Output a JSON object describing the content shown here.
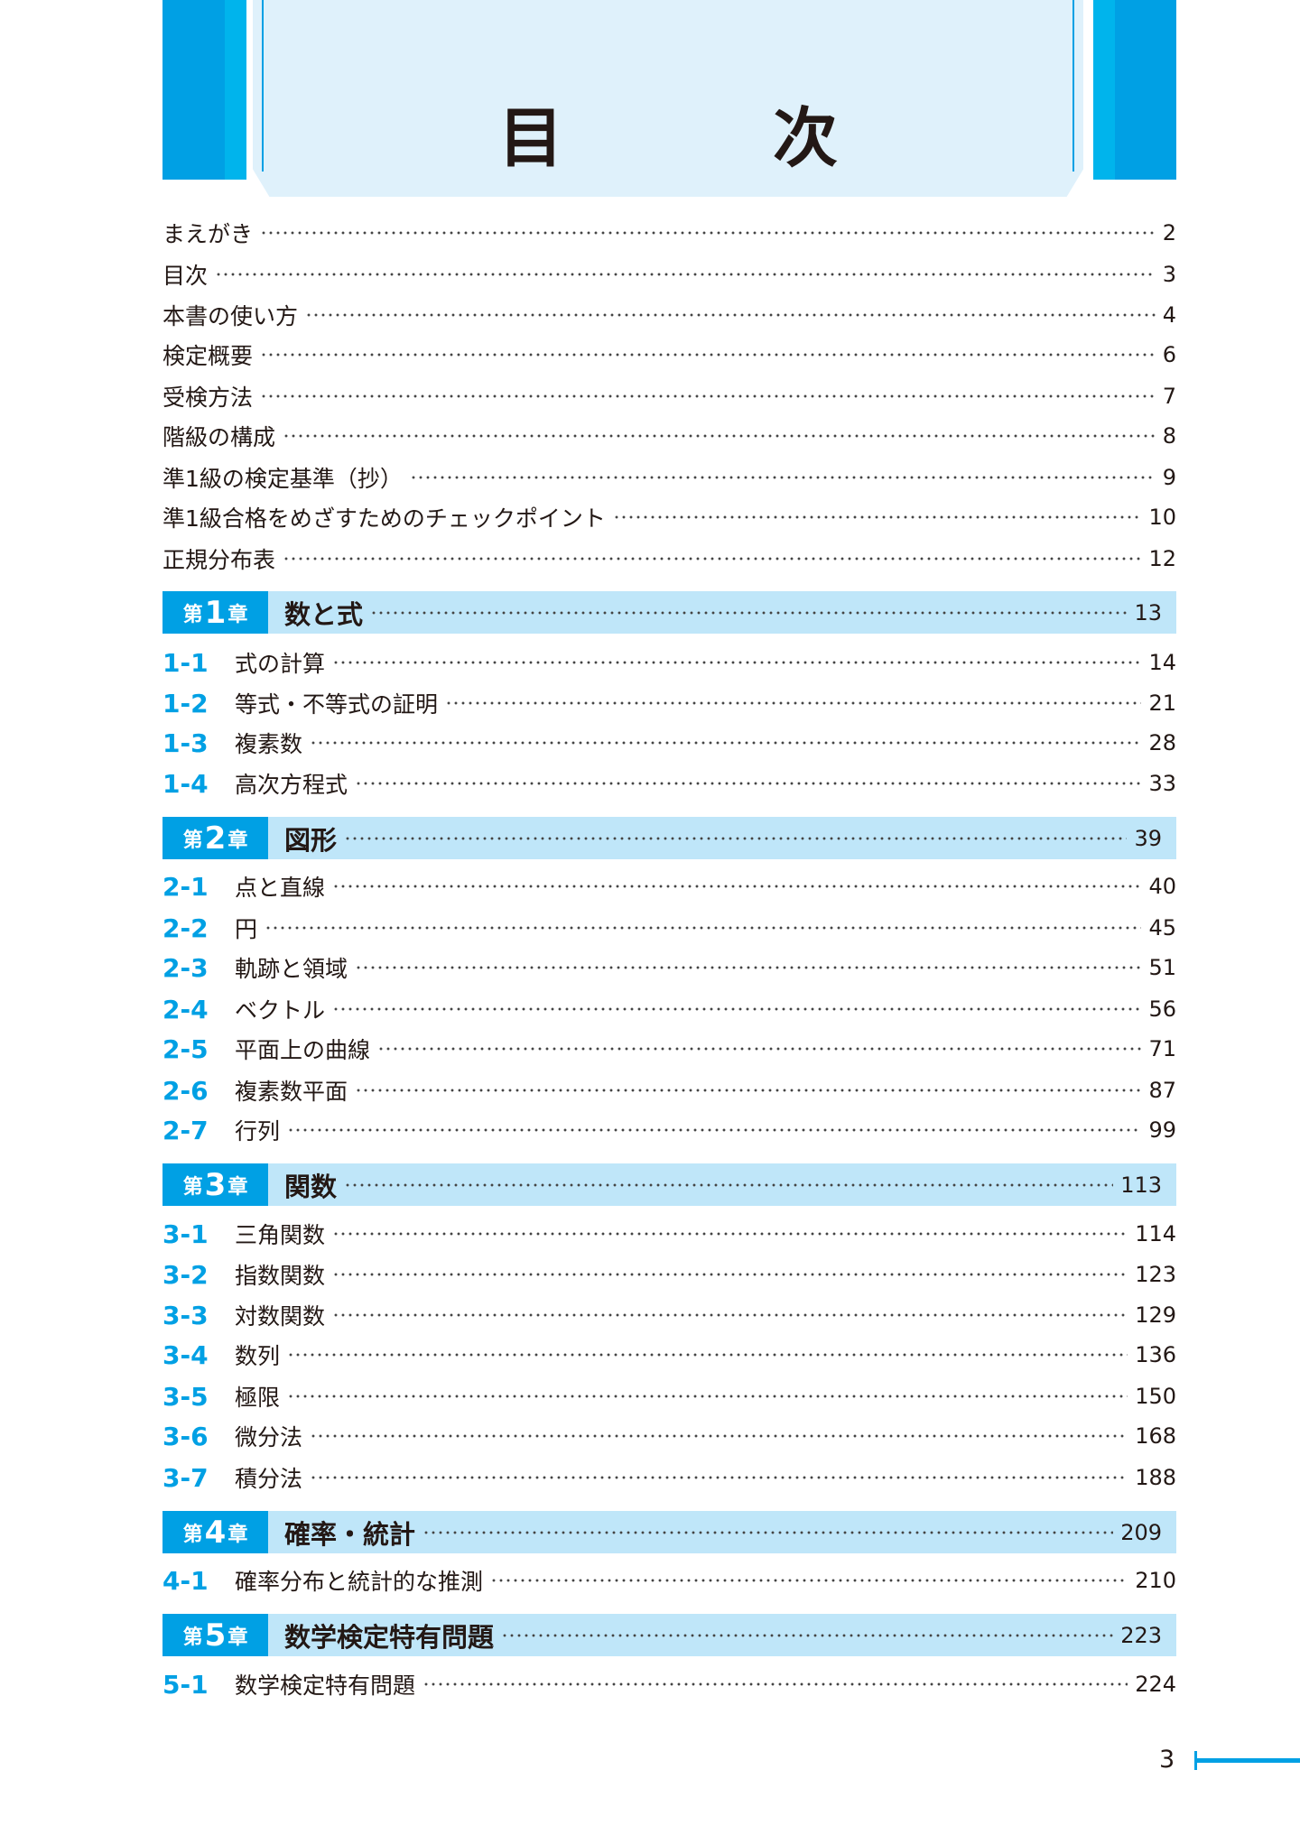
{
  "title": "目　次",
  "accent": "#00a0e4",
  "front": [
    {
      "label": "まえがき",
      "page": "2"
    },
    {
      "label": "目次",
      "page": "3"
    },
    {
      "label": "本書の使い方",
      "page": "4"
    },
    {
      "label": "検定概要",
      "page": "6"
    },
    {
      "label": "受検方法",
      "page": "7"
    },
    {
      "label": "階級の構成",
      "page": "8"
    },
    {
      "label": "準1級の検定基準（抄）",
      "page": "9"
    },
    {
      "label": "準1級合格をめざすためのチェックポイント",
      "page": "10"
    },
    {
      "label": "正規分布表",
      "page": "12"
    }
  ],
  "chapters": [
    {
      "pre": "第",
      "n": "1",
      "post": "章",
      "title": "数と式",
      "page": "13",
      "sections": [
        {
          "no": "1-1",
          "label": "式の計算",
          "page": "14"
        },
        {
          "no": "1-2",
          "label": "等式・不等式の証明",
          "page": "21"
        },
        {
          "no": "1-3",
          "label": "複素数",
          "page": "28"
        },
        {
          "no": "1-4",
          "label": "高次方程式",
          "page": "33"
        }
      ]
    },
    {
      "pre": "第",
      "n": "2",
      "post": "章",
      "title": "図形",
      "page": "39",
      "sections": [
        {
          "no": "2-1",
          "label": "点と直線",
          "page": "40"
        },
        {
          "no": "2-2",
          "label": "円",
          "page": "45"
        },
        {
          "no": "2-3",
          "label": "軌跡と領域",
          "page": "51"
        },
        {
          "no": "2-4",
          "label": "ベクトル",
          "page": "56"
        },
        {
          "no": "2-5",
          "label": "平面上の曲線",
          "page": "71"
        },
        {
          "no": "2-6",
          "label": "複素数平面",
          "page": "87"
        },
        {
          "no": "2-7",
          "label": "行列",
          "page": "99"
        }
      ]
    },
    {
      "pre": "第",
      "n": "3",
      "post": "章",
      "title": "関数",
      "page": "113",
      "sections": [
        {
          "no": "3-1",
          "label": "三角関数",
          "page": "114"
        },
        {
          "no": "3-2",
          "label": "指数関数",
          "page": "123"
        },
        {
          "no": "3-3",
          "label": "対数関数",
          "page": "129"
        },
        {
          "no": "3-4",
          "label": "数列",
          "page": "136"
        },
        {
          "no": "3-5",
          "label": "極限",
          "page": "150"
        },
        {
          "no": "3-6",
          "label": "微分法",
          "page": "168"
        },
        {
          "no": "3-7",
          "label": "積分法",
          "page": "188"
        }
      ]
    },
    {
      "pre": "第",
      "n": "4",
      "post": "章",
      "title": "確率・統計",
      "page": "209",
      "sections": [
        {
          "no": "4-1",
          "label": "確率分布と統計的な推測",
          "page": "210"
        }
      ]
    },
    {
      "pre": "第",
      "n": "5",
      "post": "章",
      "title": "数学検定特有問題",
      "page": "223",
      "sections": [
        {
          "no": "5-1",
          "label": "数学検定特有問題",
          "page": "224"
        }
      ]
    }
  ],
  "page_number": "3"
}
